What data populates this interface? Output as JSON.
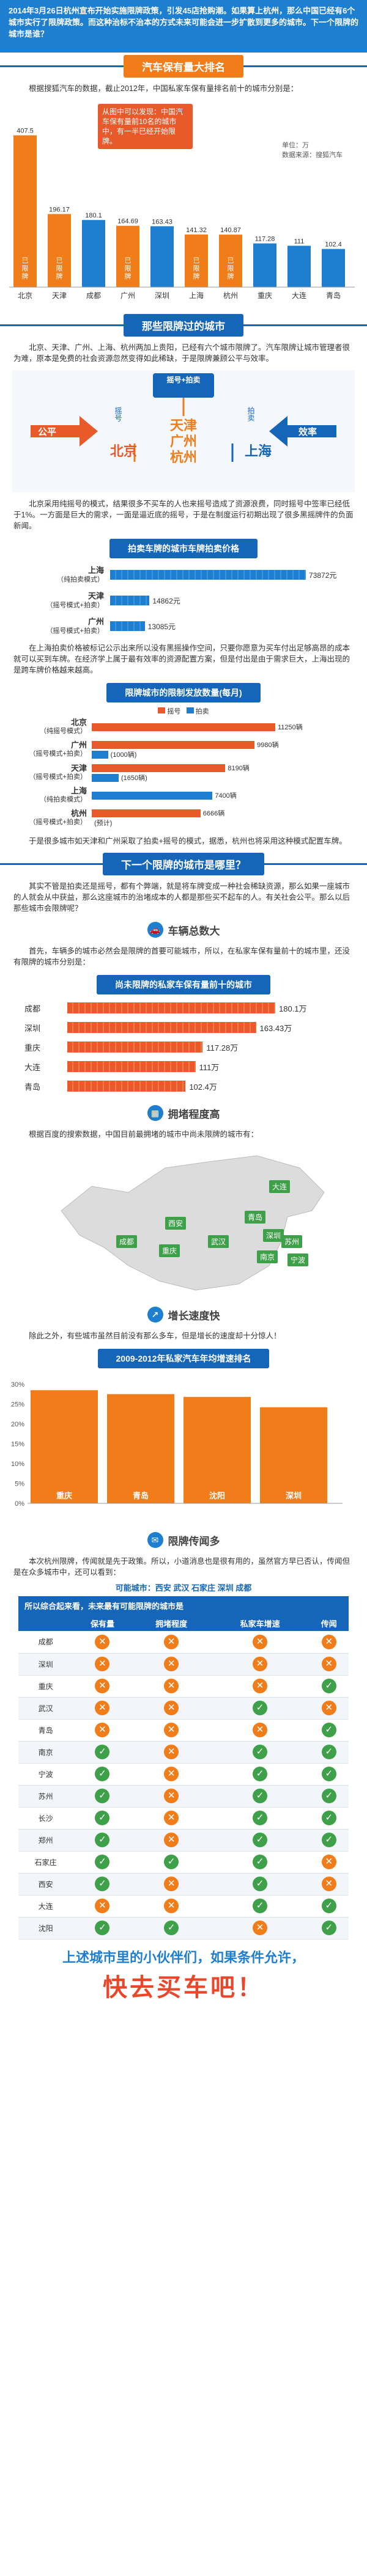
{
  "header": {
    "text": "2014年3月26日杭州宣布开始实施限牌政策，引发45店抢购潮。如果算上杭州，那么中国已经有6个城市实行了限牌政策。而这种治标不治本的方式未来可能会进一步扩散到更多的城市。下一个限牌的城市是谁？"
  },
  "section1": {
    "title": "汽车保有量大排名",
    "intro": "根据搜狐汽车的数据，截止2012年，中国私家车保有量排名前十的城市分别是：",
    "note": "从图中可以发现：中国汽车保有量前10名的城市中，有一半已经开始限牌。",
    "unit": "单位：万",
    "source": "数据来源：搜狐汽车"
  },
  "chart_top10": {
    "type": "bar",
    "categories": [
      "北京",
      "天津",
      "成都",
      "广州",
      "深圳",
      "上海",
      "杭州",
      "重庆",
      "大连",
      "青岛"
    ],
    "values": [
      407.5,
      196.17,
      180.1,
      164.69,
      163.43,
      141.32,
      140.87,
      117.28,
      111,
      102.4
    ],
    "value_labels": [
      "407.5",
      "196.17",
      "180.1",
      "164.69",
      "163.43",
      "141.32",
      "140.87",
      "117.28",
      "111",
      "102.4"
    ],
    "bar_labels": [
      "已限牌",
      "已限牌",
      "",
      "已限牌",
      "",
      "已限牌",
      "已限牌",
      "",
      "",
      ""
    ],
    "limited_color": "#f07c1a",
    "other_color": "#1e7fd1"
  },
  "section2": {
    "title": "那些限牌过的城市",
    "intro": "北京、天津、广州、上海、杭州两加上贵阳，已经有六个城市限牌了。汽车限牌让城市管理者很为难，原本是免费的社会资源忽然变得如此稀缺，于是限牌兼顾公平与效率。",
    "fair": "公平",
    "efficiency": "效率",
    "lottery_label": "摇号",
    "auction_label": "拍卖",
    "lottery_auction_label": "摇号+拍卖",
    "lottery_city": "北京",
    "auction_city": "上海",
    "mixed_cities": [
      "天津",
      "广州",
      "杭州"
    ],
    "text2": "北京采用纯摇号的模式，结果很多不买车的人也来摇号造成了资源浪费，同时摇号中签率已经低于1%。一方面是巨大的需求，一面是逼近底的摇号，于是在制度运行初期出现了很多黑摇牌件的负面新闻。"
  },
  "price_section": {
    "title": "拍卖车牌的城市车牌拍卖价格",
    "rows": [
      {
        "city": "上海",
        "mode": "（纯拍卖模式）",
        "value": 73872,
        "label": "73872元"
      },
      {
        "city": "天津",
        "mode": "（摇号模式+拍卖）",
        "value": 14862,
        "label": "14862元"
      },
      {
        "city": "广州",
        "mode": "（摇号模式+拍卖）",
        "value": 13085,
        "label": "13085元"
      }
    ],
    "text": "在上海拍卖价格被标记公示出来所以没有黑摇操作空间，只要你愿意为买车付出足够高昂的成本就可以买到车牌。在经济学上属于最有效率的资源配置方案，但是付出是由于需求巨大，上海出现的是跨车牌价格越来越高。"
  },
  "quota_section": {
    "title": "限牌城市的限制发放数量(每月)",
    "legend_lottery": "摇号",
    "legend_auction": "拍卖",
    "rows": [
      {
        "city": "北京",
        "mode": "（纯摇号模式）",
        "lottery": 11250,
        "auction": 0,
        "lottery_label": "11250辆",
        "auction_label": ""
      },
      {
        "city": "广州",
        "mode": "（摇号模式+拍卖）",
        "lottery": 9980,
        "auction": 1000,
        "lottery_label": "9980辆",
        "auction_label": "(1000辆)"
      },
      {
        "city": "天津",
        "mode": "（摇号模式+拍卖）",
        "lottery": 8190,
        "auction": 1650,
        "lottery_label": "8190辆",
        "auction_label": "(1650辆)"
      },
      {
        "city": "上海",
        "mode": "（纯拍卖模式）",
        "lottery": 0,
        "auction": 7400,
        "lottery_label": "",
        "auction_label": "7400辆"
      },
      {
        "city": "杭州",
        "mode": "（摇号模式+拍卖）",
        "lottery": 6666,
        "auction": 0,
        "lottery_label": "6666辆",
        "auction_label": "(预计)"
      }
    ],
    "text": "于是很多城市如天津和广州采取了拍卖+摇号的模式，据悉，杭州也将采用这种模式配置车牌。"
  },
  "section3": {
    "title": "下一个限牌的城市是哪里？",
    "intro": "其实不管是拍卖还是摇号，都有个弊端，就是将车牌变成一种社会稀缺资源，那么如果一座城市的人就会从中获益，那么这座城市的治堵成本的人都是那些买不起车的人。有关社会公平。那么以后那些城市会限牌呢？"
  },
  "vehicle_total": {
    "title": "车辆总数大",
    "intro": "首先，车辆多的城市必然会是限牌的首要可能城市，所以，在私家车保有量前十的城市里，还没有限牌的城市分别是：",
    "chart_title": "尚未限牌的私家车保有量前十的城市",
    "chart_data": {
      "type": "bar",
      "categories": [
        "成都",
        "深圳",
        "重庆",
        "大连",
        "青岛"
      ],
      "values": [
        180.1,
        163.43,
        117.28,
        111,
        102.4
      ],
      "value_labels": [
        "180.1万",
        "163.43万",
        "117.28万",
        "111万",
        "102.4万"
      ]
    }
  },
  "congestion": {
    "title": "拥堵程度高",
    "intro": "根据百度的搜索数据，中国目前最拥堵的城市中尚未限牌的城市有：",
    "cities": [
      "成都",
      "重庆",
      "青岛",
      "深圳",
      "苏州",
      "宁波",
      "南京",
      "武汉",
      "西安",
      "大连"
    ]
  },
  "growth": {
    "title": "增长速度快",
    "intro": "除此之外，有些城市虽然目前没有那么多车，但是增长的速度却十分惊人！",
    "chart_title": "2009-2012年私家汽车年均增速排名",
    "chart_data": {
      "type": "bar",
      "categories": [
        "重庆",
        "青岛",
        "沈阳",
        "深圳"
      ],
      "values": [
        28.5,
        27.5,
        26.8,
        24.2
      ],
      "yticks": [
        "0%",
        "5%",
        "10%",
        "15%",
        "20%",
        "25%",
        "30%"
      ],
      "ylim": [
        0,
        30
      ]
    }
  },
  "rumors": {
    "title": "限牌传闻多",
    "intro": "本次杭州限牌，传闻就是先于政策。所以，小道消息也是很有用的，虽然官方早已否认，传闻但是在众多城市中，还可以看到：",
    "rumor_label": "可能城市：",
    "rumor_cities": "西安 武汉 石家庄 深圳 成都",
    "table_title": "所以综合起来看，未来最有可能限牌的城市是",
    "columns": [
      "",
      "保有量",
      "拥堵程度",
      "私家车增速",
      "传闻"
    ],
    "rows": [
      {
        "city": "成都",
        "marks": [
          "x",
          "x",
          "x",
          "x"
        ]
      },
      {
        "city": "深圳",
        "marks": [
          "x",
          "x",
          "x",
          "x"
        ]
      },
      {
        "city": "重庆",
        "marks": [
          "x",
          "x",
          "x",
          "ok"
        ]
      },
      {
        "city": "武汉",
        "marks": [
          "x",
          "x",
          "ok",
          "x"
        ]
      },
      {
        "city": "青岛",
        "marks": [
          "x",
          "x",
          "x",
          "ok"
        ]
      },
      {
        "city": "南京",
        "marks": [
          "ok",
          "x",
          "ok",
          "ok"
        ]
      },
      {
        "city": "宁波",
        "marks": [
          "ok",
          "x",
          "ok",
          "ok"
        ]
      },
      {
        "city": "苏州",
        "marks": [
          "ok",
          "x",
          "ok",
          "ok"
        ]
      },
      {
        "city": "长沙",
        "marks": [
          "ok",
          "x",
          "ok",
          "ok"
        ]
      },
      {
        "city": "郑州",
        "marks": [
          "ok",
          "x",
          "ok",
          "ok"
        ]
      },
      {
        "city": "石家庄",
        "marks": [
          "ok",
          "ok",
          "ok",
          "x"
        ]
      },
      {
        "city": "西安",
        "marks": [
          "ok",
          "x",
          "ok",
          "x"
        ]
      },
      {
        "city": "大连",
        "marks": [
          "x",
          "x",
          "ok",
          "ok"
        ]
      },
      {
        "city": "沈阳",
        "marks": [
          "ok",
          "ok",
          "x",
          "ok"
        ]
      }
    ]
  },
  "footer": {
    "line1": "上述城市里的小伙伴们，如果条件允许，",
    "line2": "快去买车吧！"
  }
}
